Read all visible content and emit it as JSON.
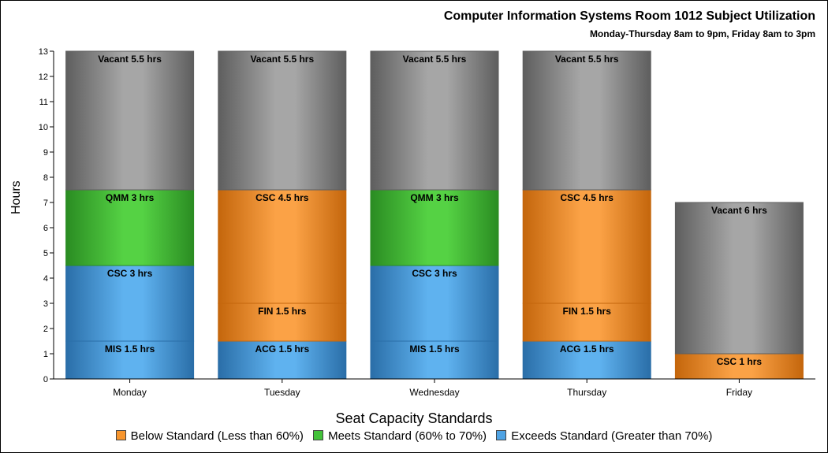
{
  "chart_data": {
    "type": "bar",
    "stacked": true,
    "title": "Computer Information Systems Room 1012 Subject Utilization",
    "subtitle": "Monday-Thursday 8am to 9pm, Friday 8am to 3pm",
    "xlabel": "",
    "ylabel": "Hours",
    "ylim": [
      0,
      13
    ],
    "yticks": [
      0,
      1,
      2,
      3,
      4,
      5,
      6,
      7,
      8,
      9,
      10,
      11,
      12,
      13
    ],
    "grid": false,
    "categories": [
      "Monday",
      "Tuesday",
      "Wednesday",
      "Thursday",
      "Friday"
    ],
    "bars": [
      {
        "category": "Monday",
        "segments": [
          {
            "label": "MIS 1.5 hrs",
            "value": 1.5,
            "standard": "exceeds"
          },
          {
            "label": "CSC 3 hrs",
            "value": 3,
            "standard": "exceeds"
          },
          {
            "label": "QMM 3 hrs",
            "value": 3,
            "standard": "meets"
          },
          {
            "label": "Vacant 5.5 hrs",
            "value": 5.5,
            "standard": "vacant"
          }
        ]
      },
      {
        "category": "Tuesday",
        "segments": [
          {
            "label": "ACG 1.5 hrs",
            "value": 1.5,
            "standard": "exceeds"
          },
          {
            "label": "FIN 1.5 hrs",
            "value": 1.5,
            "standard": "below"
          },
          {
            "label": "CSC 4.5 hrs",
            "value": 4.5,
            "standard": "below"
          },
          {
            "label": "Vacant 5.5 hrs",
            "value": 5.5,
            "standard": "vacant"
          }
        ]
      },
      {
        "category": "Wednesday",
        "segments": [
          {
            "label": "MIS 1.5 hrs",
            "value": 1.5,
            "standard": "exceeds"
          },
          {
            "label": "CSC 3 hrs",
            "value": 3,
            "standard": "exceeds"
          },
          {
            "label": "QMM 3 hrs",
            "value": 3,
            "standard": "meets"
          },
          {
            "label": "Vacant 5.5 hrs",
            "value": 5.5,
            "standard": "vacant"
          }
        ]
      },
      {
        "category": "Thursday",
        "segments": [
          {
            "label": "ACG 1.5 hrs",
            "value": 1.5,
            "standard": "exceeds"
          },
          {
            "label": "FIN 1.5 hrs",
            "value": 1.5,
            "standard": "below"
          },
          {
            "label": "CSC 4.5 hrs",
            "value": 4.5,
            "standard": "below"
          },
          {
            "label": "Vacant 5.5 hrs",
            "value": 5.5,
            "standard": "vacant"
          }
        ]
      },
      {
        "category": "Friday",
        "segments": [
          {
            "label": "CSC 1 hrs",
            "value": 1,
            "standard": "below"
          },
          {
            "label": "Vacant 6 hrs",
            "value": 6,
            "standard": "vacant"
          }
        ]
      }
    ],
    "legend": {
      "title": "Seat Capacity Standards",
      "placement": "bottom",
      "items": [
        {
          "key": "below",
          "label": "Below Standard (Less than 60%)",
          "color": "#f7952d"
        },
        {
          "key": "meets",
          "label": "Meets Standard (60% to 70%)",
          "color": "#43c23a"
        },
        {
          "key": "exceeds",
          "label": "Exceeds Standard (Greater than 70%)",
          "color": "#4ea3e4"
        }
      ]
    },
    "colors": {
      "below": {
        "light": "#fba246",
        "dark": "#c4660c"
      },
      "meets": {
        "light": "#55d244",
        "dark": "#2a8c22"
      },
      "exceeds": {
        "light": "#5fb2ef",
        "dark": "#2a6ea8"
      },
      "vacant": {
        "light": "#a6a6a6",
        "dark": "#5e5e5e"
      }
    }
  }
}
